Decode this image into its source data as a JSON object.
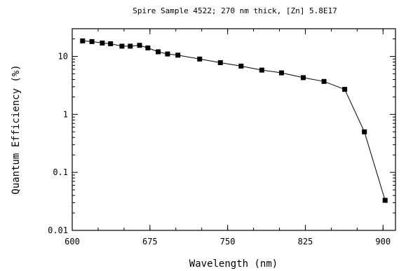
{
  "chart_data": {
    "type": "scatter",
    "title": "Spire Sample 4522; 270 nm thick, [Zn] 5.8E17",
    "xlabel": "Wavelength (nm)",
    "ylabel": "Quantum Efficiency (%)",
    "xlim": [
      600,
      912
    ],
    "ylim": [
      0.01,
      30
    ],
    "yscale": "log",
    "x_ticks": [
      600,
      675,
      750,
      825,
      900
    ],
    "x_tick_labels": [
      "600",
      "675",
      "750",
      "825",
      "900"
    ],
    "y_ticks": [
      0.01,
      0.1,
      1,
      10
    ],
    "y_tick_labels": [
      "0.01",
      "0.1",
      "1",
      "10"
    ],
    "grid": false,
    "connected": true,
    "marker": "square",
    "series": [
      {
        "x": [
          610,
          619,
          629,
          637,
          648,
          656,
          665,
          673,
          683,
          692,
          702,
          723,
          743,
          763,
          783,
          802,
          823,
          843,
          863,
          882,
          902
        ],
        "y": [
          18.5,
          18.0,
          17.0,
          16.5,
          15.0,
          15.0,
          15.5,
          14.0,
          12.0,
          11.0,
          10.5,
          9.0,
          7.8,
          6.8,
          5.8,
          5.2,
          4.3,
          3.7,
          2.7,
          0.5,
          0.033
        ]
      }
    ]
  }
}
